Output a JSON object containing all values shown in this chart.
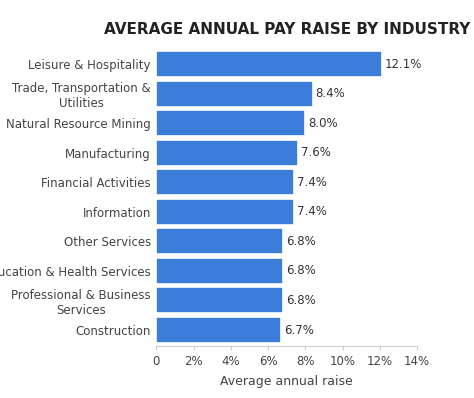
{
  "title": "AVERAGE ANNUAL PAY RAISE BY INDUSTRY",
  "xlabel": "Average annual raise",
  "categories": [
    "Construction",
    "Professional & Business\nServices",
    "Education & Health Services",
    "Other Services",
    "Information",
    "Financial Activities",
    "Manufacturing",
    "Natural Resource Mining",
    "Trade, Transportation &\nUtilities",
    "Leisure & Hospitality"
  ],
  "values": [
    6.7,
    6.8,
    6.8,
    6.8,
    7.4,
    7.4,
    7.6,
    8.0,
    8.4,
    12.1
  ],
  "labels": [
    "6.7%",
    "6.8%",
    "6.8%",
    "6.8%",
    "7.4%",
    "7.4%",
    "7.6%",
    "8.0%",
    "8.4%",
    "12.1%"
  ],
  "bar_color": "#3b7dd8",
  "background_color": "#ffffff",
  "title_fontsize": 11,
  "label_fontsize": 8.5,
  "tick_fontsize": 8.5,
  "xlabel_fontsize": 9,
  "xlim": [
    0,
    14
  ],
  "xticks": [
    0,
    2,
    4,
    6,
    8,
    10,
    12,
    14
  ],
  "xtick_labels": [
    "0",
    "2%",
    "4%",
    "6%",
    "8%",
    "10%",
    "12%",
    "14%"
  ]
}
